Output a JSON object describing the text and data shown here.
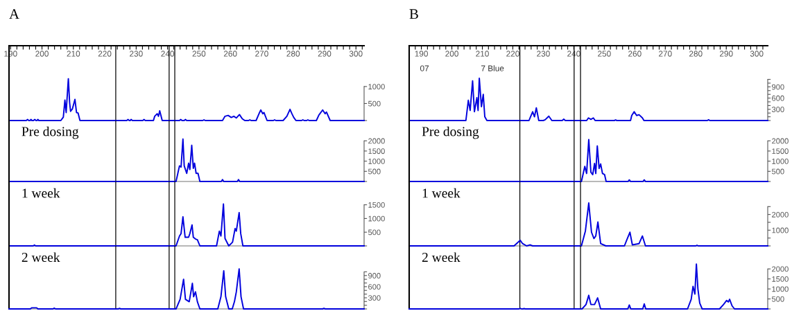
{
  "chart_data": [
    {
      "type": "line",
      "title": "A",
      "xlim": [
        189.5,
        302.6
      ],
      "ylim": [
        0,
        2200
      ],
      "xticks": [
        190,
        {
          "value": 192,
          "label": null
        },
        {
          "value": 194,
          "label": null
        },
        {
          "value": 196,
          "label": null
        },
        {
          "value": 198,
          "label": null
        },
        200,
        {
          "value": 202,
          "label": null
        },
        {
          "value": 204,
          "label": null
        },
        {
          "value": 206,
          "label": null
        },
        {
          "value": 208,
          "label": null
        },
        210,
        {
          "value": 212,
          "label": null
        },
        {
          "value": 214,
          "label": null
        },
        {
          "value": 216,
          "label": null
        },
        {
          "value": 218,
          "label": null
        },
        220,
        {
          "value": 222,
          "label": null
        },
        {
          "value": 224,
          "label": null
        },
        {
          "value": 226,
          "label": null
        },
        {
          "value": 228,
          "label": null
        },
        230,
        {
          "value": 232,
          "label": null
        },
        {
          "value": 234,
          "label": null
        },
        {
          "value": 236,
          "label": null
        },
        {
          "value": 238,
          "label": null
        },
        240,
        {
          "value": 242,
          "label": null
        },
        {
          "value": 244,
          "label": null
        },
        {
          "value": 246,
          "label": null
        },
        {
          "value": 248,
          "label": null
        },
        250,
        {
          "value": 252,
          "label": null
        },
        {
          "value": 254,
          "label": null
        },
        {
          "value": 256,
          "label": null
        },
        {
          "value": 258,
          "label": null
        },
        260,
        {
          "value": 262,
          "label": null
        },
        {
          "value": 264,
          "label": null
        },
        {
          "value": 266,
          "label": null
        },
        {
          "value": 268,
          "label": null
        },
        270,
        {
          "value": 272,
          "label": null
        },
        {
          "value": 274,
          "label": null
        },
        {
          "value": 276,
          "label": null
        },
        {
          "value": 278,
          "label": null
        },
        280,
        {
          "value": 282,
          "label": null
        },
        {
          "value": 284,
          "label": null
        },
        {
          "value": 286,
          "label": null
        },
        {
          "value": 288,
          "label": null
        },
        290,
        {
          "value": 292,
          "label": null
        },
        {
          "value": 294,
          "label": null
        },
        {
          "value": 296,
          "label": null
        },
        {
          "value": 298,
          "label": null
        },
        300,
        {
          "value": 302,
          "label": null
        }
      ],
      "yticks": [
        {
          "value": 0,
          "label": null
        },
        500,
        1000
      ],
      "ref_lines": [
        {
          "axis": "x",
          "value": 223.5,
          "color": "#000000"
        },
        {
          "axis": "x",
          "value": 240.5,
          "color": "#000000"
        },
        {
          "axis": "x",
          "value": 242.3,
          "color": "#000000"
        }
      ],
      "series": [
        {
          "color": "#0000dd",
          "x": [
            189.5,
            195.0,
            195.4,
            195.8,
            196.2,
            196.5,
            196.8,
            197.3,
            197.7,
            198.1,
            198.4,
            198.7,
            199.0,
            206.0,
            206.8,
            207.3,
            207.7,
            208.4,
            208.8,
            209.1,
            209.7,
            210.5,
            211.0,
            211.5,
            212.1,
            227.0,
            227.4,
            227.8,
            228.1,
            228.4,
            228.8,
            232.1,
            232.5,
            232.9,
            235.5,
            235.9,
            236.7,
            237.1,
            237.5,
            238.3,
            243.8,
            244.2,
            244.6,
            245.3,
            245.7,
            246.1,
            251.2,
            251.6,
            252.0,
            257.5,
            258.3,
            259.3,
            260.3,
            261.1,
            261.9,
            262.9,
            263.8,
            264.6,
            265.8,
            266.2,
            266.6,
            268.2,
            269.3,
            269.7,
            270.3,
            270.7,
            271.7,
            273.7,
            274.1,
            274.5,
            276.8,
            278.0,
            279.0,
            279.6,
            280.2,
            280.9,
            282.7,
            283.1,
            283.5,
            284.3,
            284.7,
            285.1,
            287.4,
            288.2,
            289.4,
            290.2,
            290.6,
            291.8,
            302.6
          ],
          "values": [
            0,
            0,
            30,
            0,
            0,
            30,
            0,
            0,
            30,
            0,
            0,
            30,
            0,
            0,
            100,
            600,
            235,
            1230,
            530,
            270,
            345,
            620,
            235,
            220,
            0,
            0,
            30,
            0,
            0,
            30,
            0,
            0,
            30,
            0,
            0,
            125,
            200,
            125,
            285,
            0,
            0,
            30,
            0,
            0,
            30,
            0,
            0,
            20,
            0,
            0,
            125,
            150,
            90,
            125,
            75,
            175,
            50,
            0,
            0,
            20,
            0,
            0,
            235,
            310,
            200,
            235,
            0,
            0,
            20,
            0,
            0,
            125,
            330,
            200,
            90,
            0,
            0,
            20,
            0,
            0,
            20,
            0,
            0,
            160,
            310,
            200,
            250,
            0,
            0
          ]
        }
      ]
    },
    {
      "type": "line",
      "title": "Pre dosing",
      "xlim": [
        189.5,
        302.6
      ],
      "ylim": [
        0,
        3000
      ],
      "tick_labels": "y",
      "yticks": [
        {
          "value": 0,
          "label": null
        },
        500,
        1000,
        1500,
        2000
      ],
      "ref_lines": [
        {
          "axis": "x",
          "value": 223.5,
          "color": "#000000"
        },
        {
          "axis": "x",
          "value": 240.5,
          "color": "#000000"
        },
        {
          "axis": "x",
          "value": 242.3,
          "color": "#000000"
        }
      ],
      "series": [
        {
          "color": "#0000dd",
          "x": [
            189.5,
            242.7,
            243.8,
            244.3,
            244.9,
            245.3,
            246.1,
            246.7,
            247.1,
            247.7,
            248.2,
            248.6,
            249.1,
            249.7,
            250.3,
            257.1,
            257.5,
            257.9,
            262.2,
            262.6,
            263.0,
            302.6
          ],
          "values": [
            0,
            0,
            770,
            710,
            2090,
            770,
            400,
            900,
            590,
            1780,
            650,
            900,
            400,
            400,
            0,
            0,
            90,
            0,
            0,
            90,
            0,
            0
          ]
        }
      ]
    },
    {
      "type": "line",
      "title": "1 week",
      "xlim": [
        189.5,
        302.6
      ],
      "ylim": [
        0,
        2350
      ],
      "tick_labels": "y",
      "yticks": [
        {
          "value": 0,
          "label": null
        },
        500,
        1000,
        1500
      ],
      "ref_lines": [
        {
          "axis": "x",
          "value": 223.5,
          "color": "#000000"
        },
        {
          "axis": "x",
          "value": 240.5,
          "color": "#000000"
        },
        {
          "axis": "x",
          "value": 242.3,
          "color": "#000000"
        }
      ],
      "series": [
        {
          "color": "#0000dd",
          "x": [
            189.5,
            197.2,
            197.6,
            198.0,
            242.7,
            243.8,
            244.3,
            244.9,
            245.6,
            246.7,
            247.1,
            247.8,
            248.2,
            248.9,
            249.5,
            250.3,
            255.6,
            256.5,
            257.0,
            257.8,
            258.3,
            259.5,
            260.7,
            261.5,
            261.9,
            262.8,
            263.3,
            264.0,
            302.6
          ],
          "values": [
            0,
            0,
            30,
            0,
            0,
            360,
            450,
            1060,
            315,
            315,
            450,
            765,
            315,
            250,
            225,
            0,
            0,
            540,
            360,
            1530,
            270,
            0,
            135,
            630,
            540,
            1215,
            450,
            0,
            0
          ]
        }
      ]
    },
    {
      "type": "line",
      "title": "2 week",
      "xlim": [
        189.5,
        302.6
      ],
      "ylim": [
        0,
        1700
      ],
      "tick_labels": "y",
      "yticks": [
        {
          "value": 0,
          "label": null
        },
        {
          "value": 100,
          "label": null
        },
        {
          "value": 200,
          "label": null
        },
        300,
        {
          "value": 400,
          "label": null
        },
        {
          "value": 500,
          "label": null
        },
        600,
        {
          "value": 700,
          "label": null
        },
        {
          "value": 800,
          "label": null
        },
        900,
        {
          "value": 1000,
          "label": null
        }
      ],
      "ref_lines": [
        {
          "axis": "x",
          "value": 223.5,
          "color": "#000000"
        },
        {
          "axis": "x",
          "value": 240.5,
          "color": "#000000"
        },
        {
          "axis": "x",
          "value": 242.3,
          "color": "#000000"
        }
      ],
      "series": [
        {
          "color": "#0000dd",
          "x": [
            189.5,
            196.3,
            196.7,
            197.5,
            198.3,
            198.7,
            203.5,
            203.9,
            204.3,
            224.3,
            224.7,
            225.1,
            242.7,
            244.0,
            245.1,
            245.7,
            246.9,
            247.9,
            248.3,
            248.9,
            249.5,
            250.3,
            256.0,
            257.0,
            257.9,
            258.5,
            259.5,
            260.6,
            261.3,
            261.9,
            262.8,
            263.4,
            264.2,
            289.4,
            289.8,
            290.2,
            302.6
          ],
          "values": [
            0,
            0,
            30,
            30,
            30,
            0,
            0,
            20,
            0,
            0,
            15,
            0,
            0,
            260,
            800,
            260,
            195,
            690,
            330,
            460,
            195,
            0,
            0,
            330,
            1030,
            330,
            0,
            0,
            195,
            460,
            1080,
            330,
            0,
            0,
            15,
            0,
            0
          ]
        }
      ]
    },
    {
      "type": "line",
      "title": "B",
      "annotations": [
        "07",
        "7 Blue"
      ],
      "xlim": [
        186,
        303.6
      ],
      "ylim": [
        0,
        2000
      ],
      "xticks": [
        {
          "value": 188,
          "label": null
        },
        190,
        {
          "value": 192,
          "label": null
        },
        {
          "value": 194,
          "label": null
        },
        {
          "value": 196,
          "label": null
        },
        {
          "value": 198,
          "label": null
        },
        200,
        {
          "value": 202,
          "label": null
        },
        {
          "value": 204,
          "label": null
        },
        {
          "value": 206,
          "label": null
        },
        {
          "value": 208,
          "label": null
        },
        210,
        {
          "value": 212,
          "label": null
        },
        {
          "value": 214,
          "label": null
        },
        {
          "value": 216,
          "label": null
        },
        {
          "value": 218,
          "label": null
        },
        220,
        {
          "value": 222,
          "label": null
        },
        {
          "value": 224,
          "label": null
        },
        {
          "value": 226,
          "label": null
        },
        {
          "value": 228,
          "label": null
        },
        230,
        {
          "value": 232,
          "label": null
        },
        {
          "value": 234,
          "label": null
        },
        {
          "value": 236,
          "label": null
        },
        {
          "value": 238,
          "label": null
        },
        240,
        {
          "value": 242,
          "label": null
        },
        {
          "value": 244,
          "label": null
        },
        {
          "value": 246,
          "label": null
        },
        {
          "value": 248,
          "label": null
        },
        250,
        {
          "value": 252,
          "label": null
        },
        {
          "value": 254,
          "label": null
        },
        {
          "value": 256,
          "label": null
        },
        {
          "value": 258,
          "label": null
        },
        260,
        {
          "value": 262,
          "label": null
        },
        {
          "value": 264,
          "label": null
        },
        {
          "value": 266,
          "label": null
        },
        {
          "value": 268,
          "label": null
        },
        270,
        {
          "value": 272,
          "label": null
        },
        {
          "value": 274,
          "label": null
        },
        {
          "value": 276,
          "label": null
        },
        {
          "value": 278,
          "label": null
        },
        280,
        {
          "value": 282,
          "label": null
        },
        {
          "value": 284,
          "label": null
        },
        {
          "value": 286,
          "label": null
        },
        {
          "value": 288,
          "label": null
        },
        290,
        {
          "value": 292,
          "label": null
        },
        {
          "value": 294,
          "label": null
        },
        {
          "value": 296,
          "label": null
        },
        {
          "value": 298,
          "label": null
        },
        300,
        {
          "value": 302,
          "label": null
        }
      ],
      "yticks": [
        {
          "value": 0,
          "label": null
        },
        {
          "value": 100,
          "label": null
        },
        {
          "value": 200,
          "label": null
        },
        300,
        {
          "value": 400,
          "label": null
        },
        {
          "value": 500,
          "label": null
        },
        600,
        {
          "value": 700,
          "label": null
        },
        {
          "value": 800,
          "label": null
        },
        900,
        {
          "value": 1000,
          "label": null
        },
        {
          "value": 1100,
          "label": null
        }
      ],
      "ref_lines": [
        {
          "axis": "x",
          "value": 222.3,
          "color": "#000000"
        },
        {
          "axis": "x",
          "value": 240.1,
          "color": "#000000"
        },
        {
          "axis": "x",
          "value": 242.2,
          "color": "#000000"
        }
      ],
      "series": [
        {
          "color": "#0000dd",
          "x": [
            186,
            204.6,
            205.4,
            206.0,
            206.8,
            207.4,
            208.2,
            208.6,
            209.0,
            209.7,
            210.3,
            210.8,
            211.5,
            225.3,
            226.5,
            227.1,
            227.7,
            228.5,
            230.0,
            230.6,
            231.8,
            232.8,
            236.2,
            236.7,
            237.2,
            244.2,
            244.8,
            245.6,
            246.4,
            247.0,
            253.3,
            253.7,
            254.1,
            258.6,
            259.0,
            259.8,
            260.6,
            261.4,
            262.5,
            263.0,
            283.8,
            284.2,
            284.6,
            303.6
          ],
          "values": [
            0,
            0,
            540,
            270,
            1060,
            235,
            610,
            270,
            1130,
            370,
            700,
            100,
            0,
            0,
            235,
            100,
            340,
            0,
            0,
            20,
            115,
            0,
            0,
            35,
            0,
            0,
            70,
            30,
            70,
            0,
            0,
            15,
            0,
            0,
            135,
            235,
            135,
            155,
            70,
            0,
            0,
            20,
            0,
            0
          ]
        }
      ]
    },
    {
      "type": "line",
      "title": "Pre dosing",
      "xlim": [
        186,
        303.6
      ],
      "ylim": [
        0,
        3000
      ],
      "tick_labels": "y",
      "yticks": [
        {
          "value": 0,
          "label": null
        },
        500,
        1000,
        1500,
        2000
      ],
      "ref_lines": [
        {
          "axis": "x",
          "value": 222.3,
          "color": "#000000"
        },
        {
          "axis": "x",
          "value": 240.1,
          "color": "#000000"
        },
        {
          "axis": "x",
          "value": 242.2,
          "color": "#000000"
        }
      ],
      "series": [
        {
          "color": "#0000dd",
          "x": [
            186,
            242.5,
            243.6,
            244.2,
            244.9,
            245.6,
            246.2,
            246.8,
            247.2,
            247.7,
            248.3,
            248.8,
            249.4,
            250.1,
            250.6,
            257.8,
            258.2,
            258.6,
            262.7,
            263.1,
            263.5,
            303.6
          ],
          "values": [
            0,
            0,
            740,
            395,
            2060,
            455,
            335,
            890,
            395,
            1750,
            640,
            860,
            395,
            335,
            0,
            0,
            80,
            0,
            0,
            80,
            0,
            0
          ]
        }
      ]
    },
    {
      "type": "line",
      "title": "1 week",
      "xlim": [
        186,
        303.6
      ],
      "ylim": [
        0,
        4100
      ],
      "tick_labels": "y",
      "yticks": [
        {
          "value": 0,
          "label": null
        },
        {
          "value": 500,
          "label": null
        },
        1000,
        {
          "value": 1500,
          "label": null
        },
        2000,
        {
          "value": 2500,
          "label": null
        }
      ],
      "ref_lines": [
        {
          "axis": "x",
          "value": 222.3,
          "color": "#000000"
        },
        {
          "axis": "x",
          "value": 240.1,
          "color": "#000000"
        },
        {
          "axis": "x",
          "value": 242.2,
          "color": "#000000"
        }
      ],
      "series": [
        {
          "color": "#0000dd",
          "x": [
            186,
            220.4,
            222.4,
            223.2,
            224.5,
            225.7,
            226.5,
            242.5,
            243.8,
            244.9,
            245.8,
            246.6,
            247.2,
            247.9,
            248.8,
            250.5,
            256.6,
            257.4,
            258.4,
            259.2,
            261.4,
            262.5,
            263.5,
            280.0,
            280.4,
            280.8,
            303.6
          ],
          "values": [
            0,
            0,
            355,
            145,
            0,
            65,
            0,
            0,
            950,
            2730,
            870,
            470,
            630,
            1520,
            145,
            0,
            0,
            390,
            870,
            65,
            145,
            630,
            0,
            0,
            40,
            0,
            0
          ]
        }
      ]
    },
    {
      "type": "line",
      "title": "2 week",
      "xlim": [
        186,
        303.6
      ],
      "ylim": [
        0,
        3150
      ],
      "tick_labels": "y",
      "yticks": [
        {
          "value": 0,
          "label": null
        },
        500,
        1000,
        1500,
        2000
      ],
      "ref_lines": [
        {
          "axis": "x",
          "value": 222.3,
          "color": "#000000"
        },
        {
          "axis": "x",
          "value": 240.1,
          "color": "#000000"
        },
        {
          "axis": "x",
          "value": 242.2,
          "color": "#000000"
        }
      ],
      "series": [
        {
          "color": "#0000dd",
          "x": [
            186,
            222.0,
            222.4,
            222.8,
            223.3,
            223.7,
            224.1,
            242.7,
            244.0,
            244.9,
            245.6,
            246.8,
            247.8,
            248.8,
            257.7,
            258.2,
            258.7,
            262.6,
            263.1,
            263.6,
            277.3,
            278.5,
            279.1,
            279.7,
            280.2,
            280.7,
            281.3,
            282.1,
            287.8,
            289.1,
            290.1,
            290.7,
            291.1,
            291.9,
            292.7,
            303.6
          ],
          "values": [
            0,
            0,
            30,
            0,
            0,
            15,
            0,
            0,
            220,
            680,
            220,
            220,
            550,
            0,
            0,
            195,
            0,
            0,
            250,
            0,
            0,
            480,
            1130,
            740,
            2240,
            1000,
            290,
            0,
            0,
            220,
            420,
            350,
            480,
            155,
            0,
            0
          ]
        }
      ]
    }
  ]
}
